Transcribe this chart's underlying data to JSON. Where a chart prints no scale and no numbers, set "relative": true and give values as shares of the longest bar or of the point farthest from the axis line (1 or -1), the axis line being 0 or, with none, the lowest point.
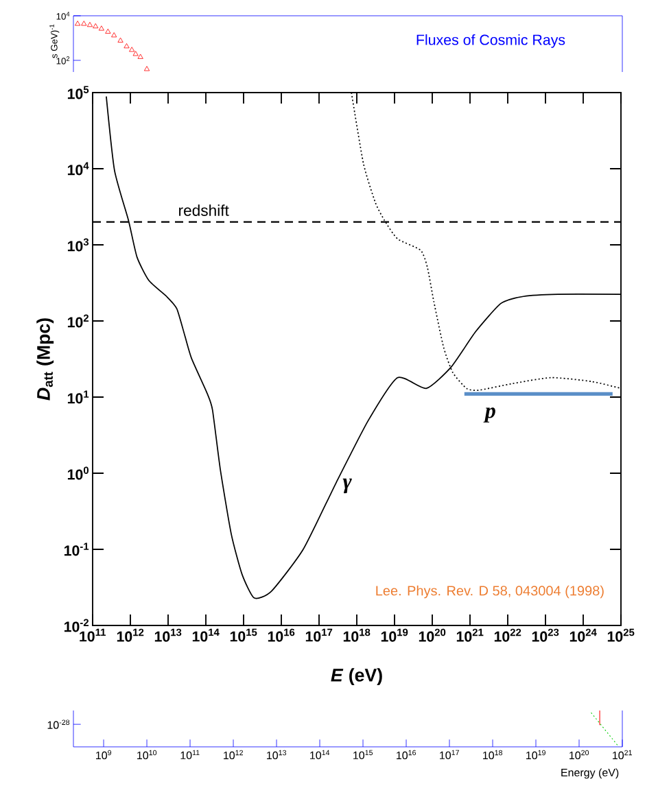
{
  "chart_data": [
    {
      "type": "scatter",
      "title": "Fluxes of Cosmic Rays",
      "ylabel": "s GeV)$^{-1}$",
      "log": "xy",
      "marker": "triangle",
      "tick_labels": "y",
      "xlim": [
        200000000.0,
        1e+21
      ],
      "ylim": [
        30,
        10000
      ],
      "yticks": [
        {
          "value": 100,
          "label": "10$^{2}$"
        },
        {
          "value": 10000,
          "label": "10$^{4}$"
        }
      ],
      "x": [
        250000000.0,
        350000000.0,
        480000000.0,
        650000000.0,
        890000000.0,
        1260000000.0,
        1740000000.0,
        2450000000.0,
        3400000000.0,
        4500000000.0,
        5500000000.0,
        7100000000.0,
        10000000000.0
      ],
      "series": [
        {
          "color": "#ff0000",
          "values": [
            4300,
            4300,
            3800,
            3300,
            2600,
            1900,
            1300,
            760,
            420,
            290,
            190,
            140,
            40
          ]
        }
      ]
    },
    {
      "type": "line",
      "xlabel": "*E* (eV)",
      "ylabel": "*D*$_{att}$ (Mpc)",
      "log": "xy",
      "marker": "none",
      "xlim": [
        100000000000.0,
        1e+25
      ],
      "ylim": [
        0.01,
        100000
      ],
      "xticks": [
        {
          "value": 100000000000.0,
          "label": "10$^{11}$"
        },
        {
          "value": 1000000000000.0,
          "label": "10$^{12}$"
        },
        {
          "value": 10000000000000.0,
          "label": "10$^{13}$"
        },
        {
          "value": 100000000000000.0,
          "label": "10$^{14}$"
        },
        {
          "value": 1000000000000000.0,
          "label": "10$^{15}$"
        },
        {
          "value": 1e+16,
          "label": "10$^{16}$"
        },
        {
          "value": 1e+17,
          "label": "10$^{17}$"
        },
        {
          "value": 1e+18,
          "label": "10$^{18}$"
        },
        {
          "value": 1e+19,
          "label": "10$^{19}$"
        },
        {
          "value": 1e+20,
          "label": "10$^{20}$"
        },
        {
          "value": 1e+21,
          "label": "10$^{21}$"
        },
        {
          "value": 1e+22,
          "label": "10$^{22}$"
        },
        {
          "value": 1e+23,
          "label": "10$^{23}$"
        },
        {
          "value": 1e+24,
          "label": "10$^{24}$"
        },
        {
          "value": 1e+25,
          "label": "10$^{25}$"
        }
      ],
      "yticks": [
        {
          "value": 0.01,
          "label": "10$^{-2}$"
        },
        {
          "value": 0.1,
          "label": "10$^{-1}$"
        },
        {
          "value": 1,
          "label": "10$^{0}$"
        },
        {
          "value": 10,
          "label": "10$^{1}$"
        },
        {
          "value": 100,
          "label": "10$^{2}$"
        },
        {
          "value": 1000,
          "label": "10$^{3}$"
        },
        {
          "value": 10000,
          "label": "10$^{4}$"
        },
        {
          "value": 100000,
          "label": "10$^{5}$"
        }
      ],
      "ref_lines": [
        {
          "axis": "y",
          "value": 2000,
          "label": "redshift",
          "color": "#000000",
          "line_style": "dashed"
        }
      ],
      "annotations": [
        "Lee. Phys. Rev. D 58, 043004 (1998)"
      ],
      "series": [
        {
          "name": "γ",
          "color": "#000000",
          "line_style": "solid",
          "x": [
            230000000000.0,
            380000000000.0,
            890000000000.0,
            1500000000000.0,
            3100000000000.0,
            9100000000000.0,
            17000000000000.0,
            28000000000000.0,
            42000000000000.0,
            110000000000000.0,
            150000000000000.0,
            240000000000000.0,
            470000000000000.0,
            910000000000000.0,
            1900000000000000.0,
            5400000000000000.0,
            3.8e+16,
            2.8e+17,
            2e+18,
            1.2e+19,
            6.9e+19,
            3.2e+20,
            1.4e+21,
            6.6e+21,
            2.6e+22,
            2.1e+23,
            1e+25
          ],
          "values": [
            89000,
            9500,
            2100,
            690,
            340,
            210,
            145,
            63,
            32,
            11,
            6.8,
            1.15,
            0.16,
            0.047,
            0.023,
            0.028,
            0.1,
            0.74,
            4.9,
            18,
            13,
            25,
            72,
            170,
            210,
            224,
            224
          ]
        },
        {
          "name": "p",
          "color": "#000000",
          "line_style": "dotted",
          "x": [
            7.2e+17,
            1.5e+18,
            3.1e+18,
            5.4e+18,
            1.2e+19,
            4.9e+19,
            7.4e+19,
            1.1e+20,
            2e+20,
            3.5e+20,
            8.1e+20,
            1.7e+21,
            1.3e+22,
            1.4e+23,
            1.7e+24,
            1e+25
          ],
          "values": [
            100000,
            11700,
            3600,
            2100,
            1200,
            850,
            510,
            180,
            45,
            21,
            13,
            12.3,
            15,
            18,
            16,
            13
          ]
        },
        {
          "color": "#5b8fc8",
          "line_style": "solid",
          "x": [
            7.1e+20,
            6e+24
          ],
          "values": [
            11,
            11
          ]
        }
      ]
    },
    {
      "type": "line",
      "xlabel": "Energy (eV)",
      "log": "x",
      "marker": "none",
      "relative": true,
      "annotations": [
        "10$^{-28}$"
      ],
      "xlim": [
        200000000.0,
        1e+21
      ],
      "xticks": [
        {
          "value": 1000000000.0,
          "label": "10$^{9}$"
        },
        {
          "value": 10000000000.0,
          "label": "10$^{10}$"
        },
        {
          "value": 100000000000.0,
          "label": "10$^{11}$"
        },
        {
          "value": 1000000000000.0,
          "label": "10$^{12}$"
        },
        {
          "value": 10000000000000.0,
          "label": "10$^{13}$"
        },
        {
          "value": 100000000000000.0,
          "label": "10$^{14}$"
        },
        {
          "value": 1000000000000000.0,
          "label": "10$^{15}$"
        },
        {
          "value": 1e+16,
          "label": "10$^{16}$"
        },
        {
          "value": 1e+17,
          "label": "10$^{17}$"
        },
        {
          "value": 1e+18,
          "label": "10$^{18}$"
        },
        {
          "value": 1e+19,
          "label": "10$^{19}$"
        },
        {
          "value": 1e+20,
          "label": "10$^{20}$"
        },
        {
          "value": 1e+21,
          "label": "10$^{21}$"
        }
      ],
      "series": [
        {
          "color": "#00cc00",
          "line_style": "dotted",
          "x": [
            1.9e+20,
            8.3e+20
          ],
          "values": [
            0.94,
            0
          ]
        },
        {
          "color": "#ff0000",
          "line_style": "solid",
          "x": [
            3e+20,
            3e+20
          ],
          "values": [
            1,
            0.6
          ]
        }
      ]
    }
  ]
}
